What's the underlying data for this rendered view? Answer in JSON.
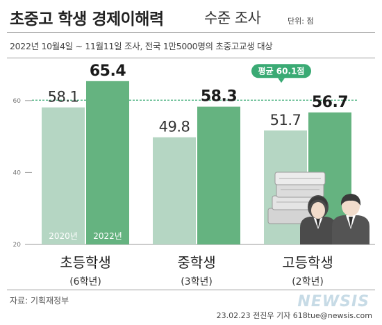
{
  "header": {
    "title": "초중고 학생 경제이해력",
    "title_suffix": "수준 조사",
    "unit": "단위: 점",
    "subtitle": "2022년 10월4일 ~ 11월11일 조사, 전국 1만5000명의 초중고교생 대상"
  },
  "chart_data": {
    "type": "bar",
    "categories": [
      "초등학생",
      "중학생",
      "고등학생"
    ],
    "category_notes": [
      "(6학년)",
      "(3학년)",
      "(2학년)"
    ],
    "series": [
      {
        "name": "2020년",
        "values": [
          58.1,
          49.8,
          51.7
        ],
        "color": "#b5d6c3"
      },
      {
        "name": "2022년",
        "values": [
          65.4,
          58.3,
          56.7
        ],
        "color": "#65b380"
      }
    ],
    "value_labels": [
      [
        "58.1",
        "49.8",
        "51.7"
      ],
      [
        "65.4",
        "58.3",
        "56.7"
      ]
    ],
    "y_ticks": [
      20,
      40,
      60
    ],
    "y_tick_labels": [
      "20",
      "40",
      "60"
    ],
    "ylim": [
      20,
      70
    ],
    "reference": {
      "value": 60.1,
      "label": "평균 60.1점",
      "color": "#3aaa74"
    }
  },
  "footer": {
    "source": "자료: 기획재정부",
    "credit": "23.02.23 전진우 기자 618tue@newsis.com",
    "watermark": "NEWSIS"
  }
}
